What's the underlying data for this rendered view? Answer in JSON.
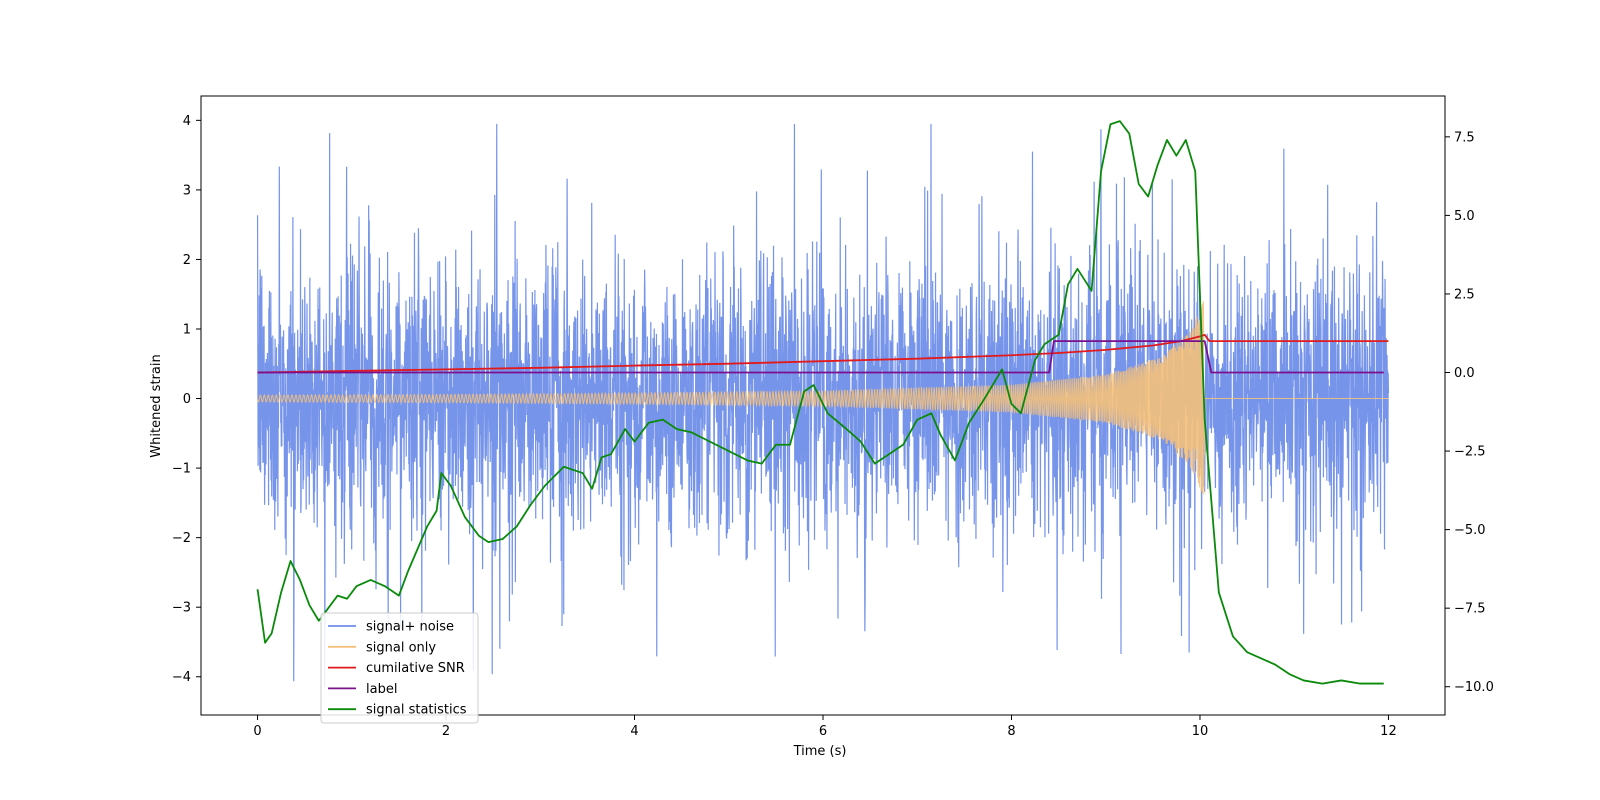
{
  "chart_data": {
    "type": "line",
    "xlabel": "Time (s)",
    "ylabel": "Whitened strain",
    "xlim": [
      -0.6,
      12.6
    ],
    "ylim_left": [
      -4.55,
      4.35
    ],
    "ylim_right": [
      -10.9,
      8.8
    ],
    "x_ticks": [
      0,
      2,
      4,
      6,
      8,
      10,
      12
    ],
    "x_tick_labels": [
      "0",
      "2",
      "4",
      "6",
      "8",
      "10",
      "12"
    ],
    "y_ticks_left": [
      -4,
      -3,
      -2,
      -1,
      0,
      1,
      2,
      3,
      4
    ],
    "y_tick_labels_left": [
      "−4",
      "−3",
      "−2",
      "−1",
      "0",
      "1",
      "2",
      "3",
      "4"
    ],
    "y_ticks_right": [
      -10,
      -7.5,
      -5,
      -2.5,
      0,
      2.5,
      5,
      7.5
    ],
    "y_tick_labels_right": [
      "−10.0",
      "−7.5",
      "−5.0",
      "−2.5",
      "0.0",
      "2.5",
      "5.0",
      "7.5"
    ],
    "legend_position": "lower-left",
    "series": [
      {
        "name": "signal+ noise",
        "color": "#6f8ee8",
        "axis": "left",
        "kind": "noise",
        "x_range": [
          0,
          12
        ],
        "noise_band_typical": [
          -2.2,
          2.2
        ],
        "noise_peak": [
          -4.15,
          3.95
        ]
      },
      {
        "name": "signal only",
        "color": "#f5c07a",
        "axis": "left",
        "kind": "chirp",
        "x_range": [
          0,
          12
        ],
        "merger_time": 10.05,
        "envelope": [
          [
            0,
            0.05
          ],
          [
            2,
            0.06
          ],
          [
            4,
            0.08
          ],
          [
            6,
            0.11
          ],
          [
            8,
            0.2
          ],
          [
            9,
            0.35
          ],
          [
            9.6,
            0.6
          ],
          [
            9.9,
            1.0
          ],
          [
            10.05,
            1.45
          ],
          [
            10.1,
            0.0
          ],
          [
            12,
            0.0
          ]
        ]
      },
      {
        "name": "cumilative SNR",
        "color": "#e31a1c",
        "axis": "right",
        "x": [
          0,
          1,
          2,
          3,
          4,
          5,
          6,
          7,
          8,
          8.5,
          9,
          9.5,
          9.8,
          10,
          10.05,
          10.1,
          12
        ],
        "values": [
          0.0,
          0.05,
          0.1,
          0.15,
          0.22,
          0.28,
          0.36,
          0.44,
          0.55,
          0.62,
          0.72,
          0.86,
          1.0,
          1.15,
          1.2,
          1.0,
          1.0
        ]
      },
      {
        "name": "label",
        "color": "#7b0f8e",
        "axis": "right",
        "x": [
          0,
          8.4,
          8.45,
          10.05,
          10.12,
          11.95
        ],
        "values": [
          0,
          0,
          1,
          1,
          0,
          0
        ]
      },
      {
        "name": "signal statistics",
        "color": "#0a8a0a",
        "axis": "right",
        "x": [
          0,
          0.08,
          0.15,
          0.25,
          0.35,
          0.45,
          0.55,
          0.65,
          0.75,
          0.85,
          0.95,
          1.05,
          1.2,
          1.35,
          1.5,
          1.6,
          1.7,
          1.8,
          1.9,
          1.95,
          2.05,
          2.2,
          2.35,
          2.45,
          2.6,
          2.75,
          2.9,
          3.05,
          3.25,
          3.45,
          3.55,
          3.65,
          3.75,
          3.9,
          4.0,
          4.15,
          4.3,
          4.45,
          4.6,
          4.8,
          5.0,
          5.2,
          5.35,
          5.5,
          5.65,
          5.8,
          5.9,
          6.05,
          6.25,
          6.4,
          6.55,
          6.7,
          6.85,
          7.0,
          7.15,
          7.25,
          7.4,
          7.55,
          7.7,
          7.8,
          7.9,
          8.0,
          8.1,
          8.25,
          8.35,
          8.5,
          8.6,
          8.7,
          8.85,
          8.95,
          9.05,
          9.15,
          9.25,
          9.35,
          9.45,
          9.55,
          9.65,
          9.75,
          9.85,
          9.95,
          10.05,
          10.2,
          10.35,
          10.5,
          10.65,
          10.8,
          10.95,
          11.1,
          11.3,
          11.5,
          11.7,
          11.95
        ],
        "values": [
          -6.9,
          -8.6,
          -8.3,
          -7.0,
          -6.0,
          -6.6,
          -7.4,
          -7.9,
          -7.5,
          -7.1,
          -7.2,
          -6.8,
          -6.6,
          -6.8,
          -7.1,
          -6.3,
          -5.6,
          -4.9,
          -4.4,
          -3.2,
          -3.6,
          -4.6,
          -5.2,
          -5.4,
          -5.3,
          -4.9,
          -4.2,
          -3.6,
          -3.0,
          -3.2,
          -3.7,
          -2.7,
          -2.6,
          -1.8,
          -2.2,
          -1.6,
          -1.5,
          -1.8,
          -1.9,
          -2.2,
          -2.5,
          -2.8,
          -2.9,
          -2.3,
          -2.3,
          -0.6,
          -0.4,
          -1.3,
          -1.8,
          -2.2,
          -2.9,
          -2.6,
          -2.3,
          -1.5,
          -1.3,
          -2.0,
          -2.8,
          -1.6,
          -0.9,
          -0.4,
          0.1,
          -1.0,
          -1.3,
          0.4,
          0.9,
          1.2,
          2.8,
          3.3,
          2.6,
          6.4,
          7.9,
          8.0,
          7.6,
          6.0,
          5.6,
          6.6,
          7.4,
          6.9,
          7.4,
          6.4,
          -1.5,
          -7.0,
          -8.4,
          -8.9,
          -9.1,
          -9.3,
          -9.6,
          -9.8,
          -9.9,
          -9.8,
          -9.9,
          -9.9
        ]
      }
    ]
  }
}
